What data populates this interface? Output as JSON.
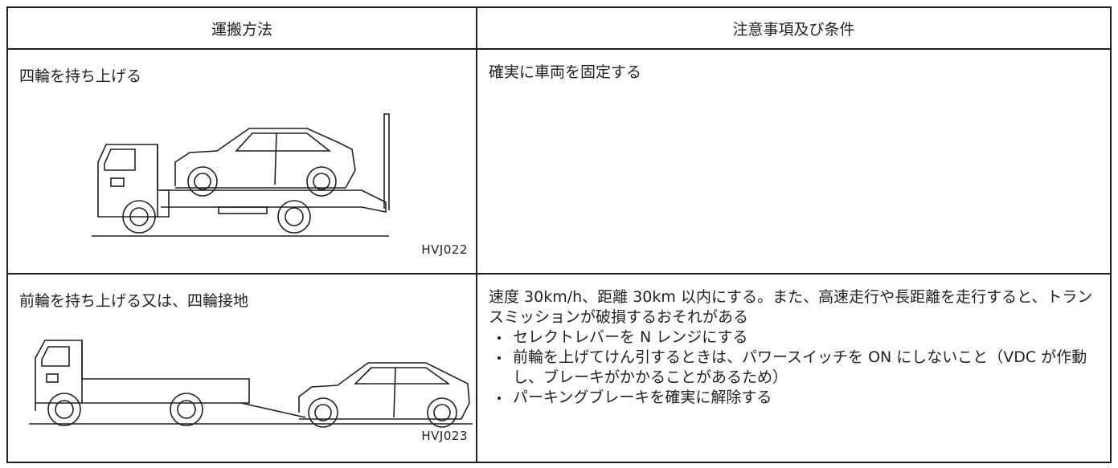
{
  "table": {
    "header": [
      "運搬方法",
      "注意事項及び条件"
    ],
    "rows": [
      {
        "method": "四輪を持ち上げる",
        "figure": "HVJ022",
        "note": "確実に車両を固定する",
        "bullets": []
      },
      {
        "method": "前輪を持ち上げる又は、四輪接地",
        "figure": "HVJ023",
        "note": "速度 30km/h、距離 30km 以内にする。また、高速走行や長距離を走行すると、トランスミッションが破損するおそれがある",
        "bullets": [
          "セレクトレバーを N レンジにする",
          "前輪を上げてけん引するときは、パワースイッチを ON にしないこと（VDC が作動し、ブレーキがかかることがあるため）",
          "パーキングブレーキを確実に解除する"
        ]
      }
    ]
  }
}
